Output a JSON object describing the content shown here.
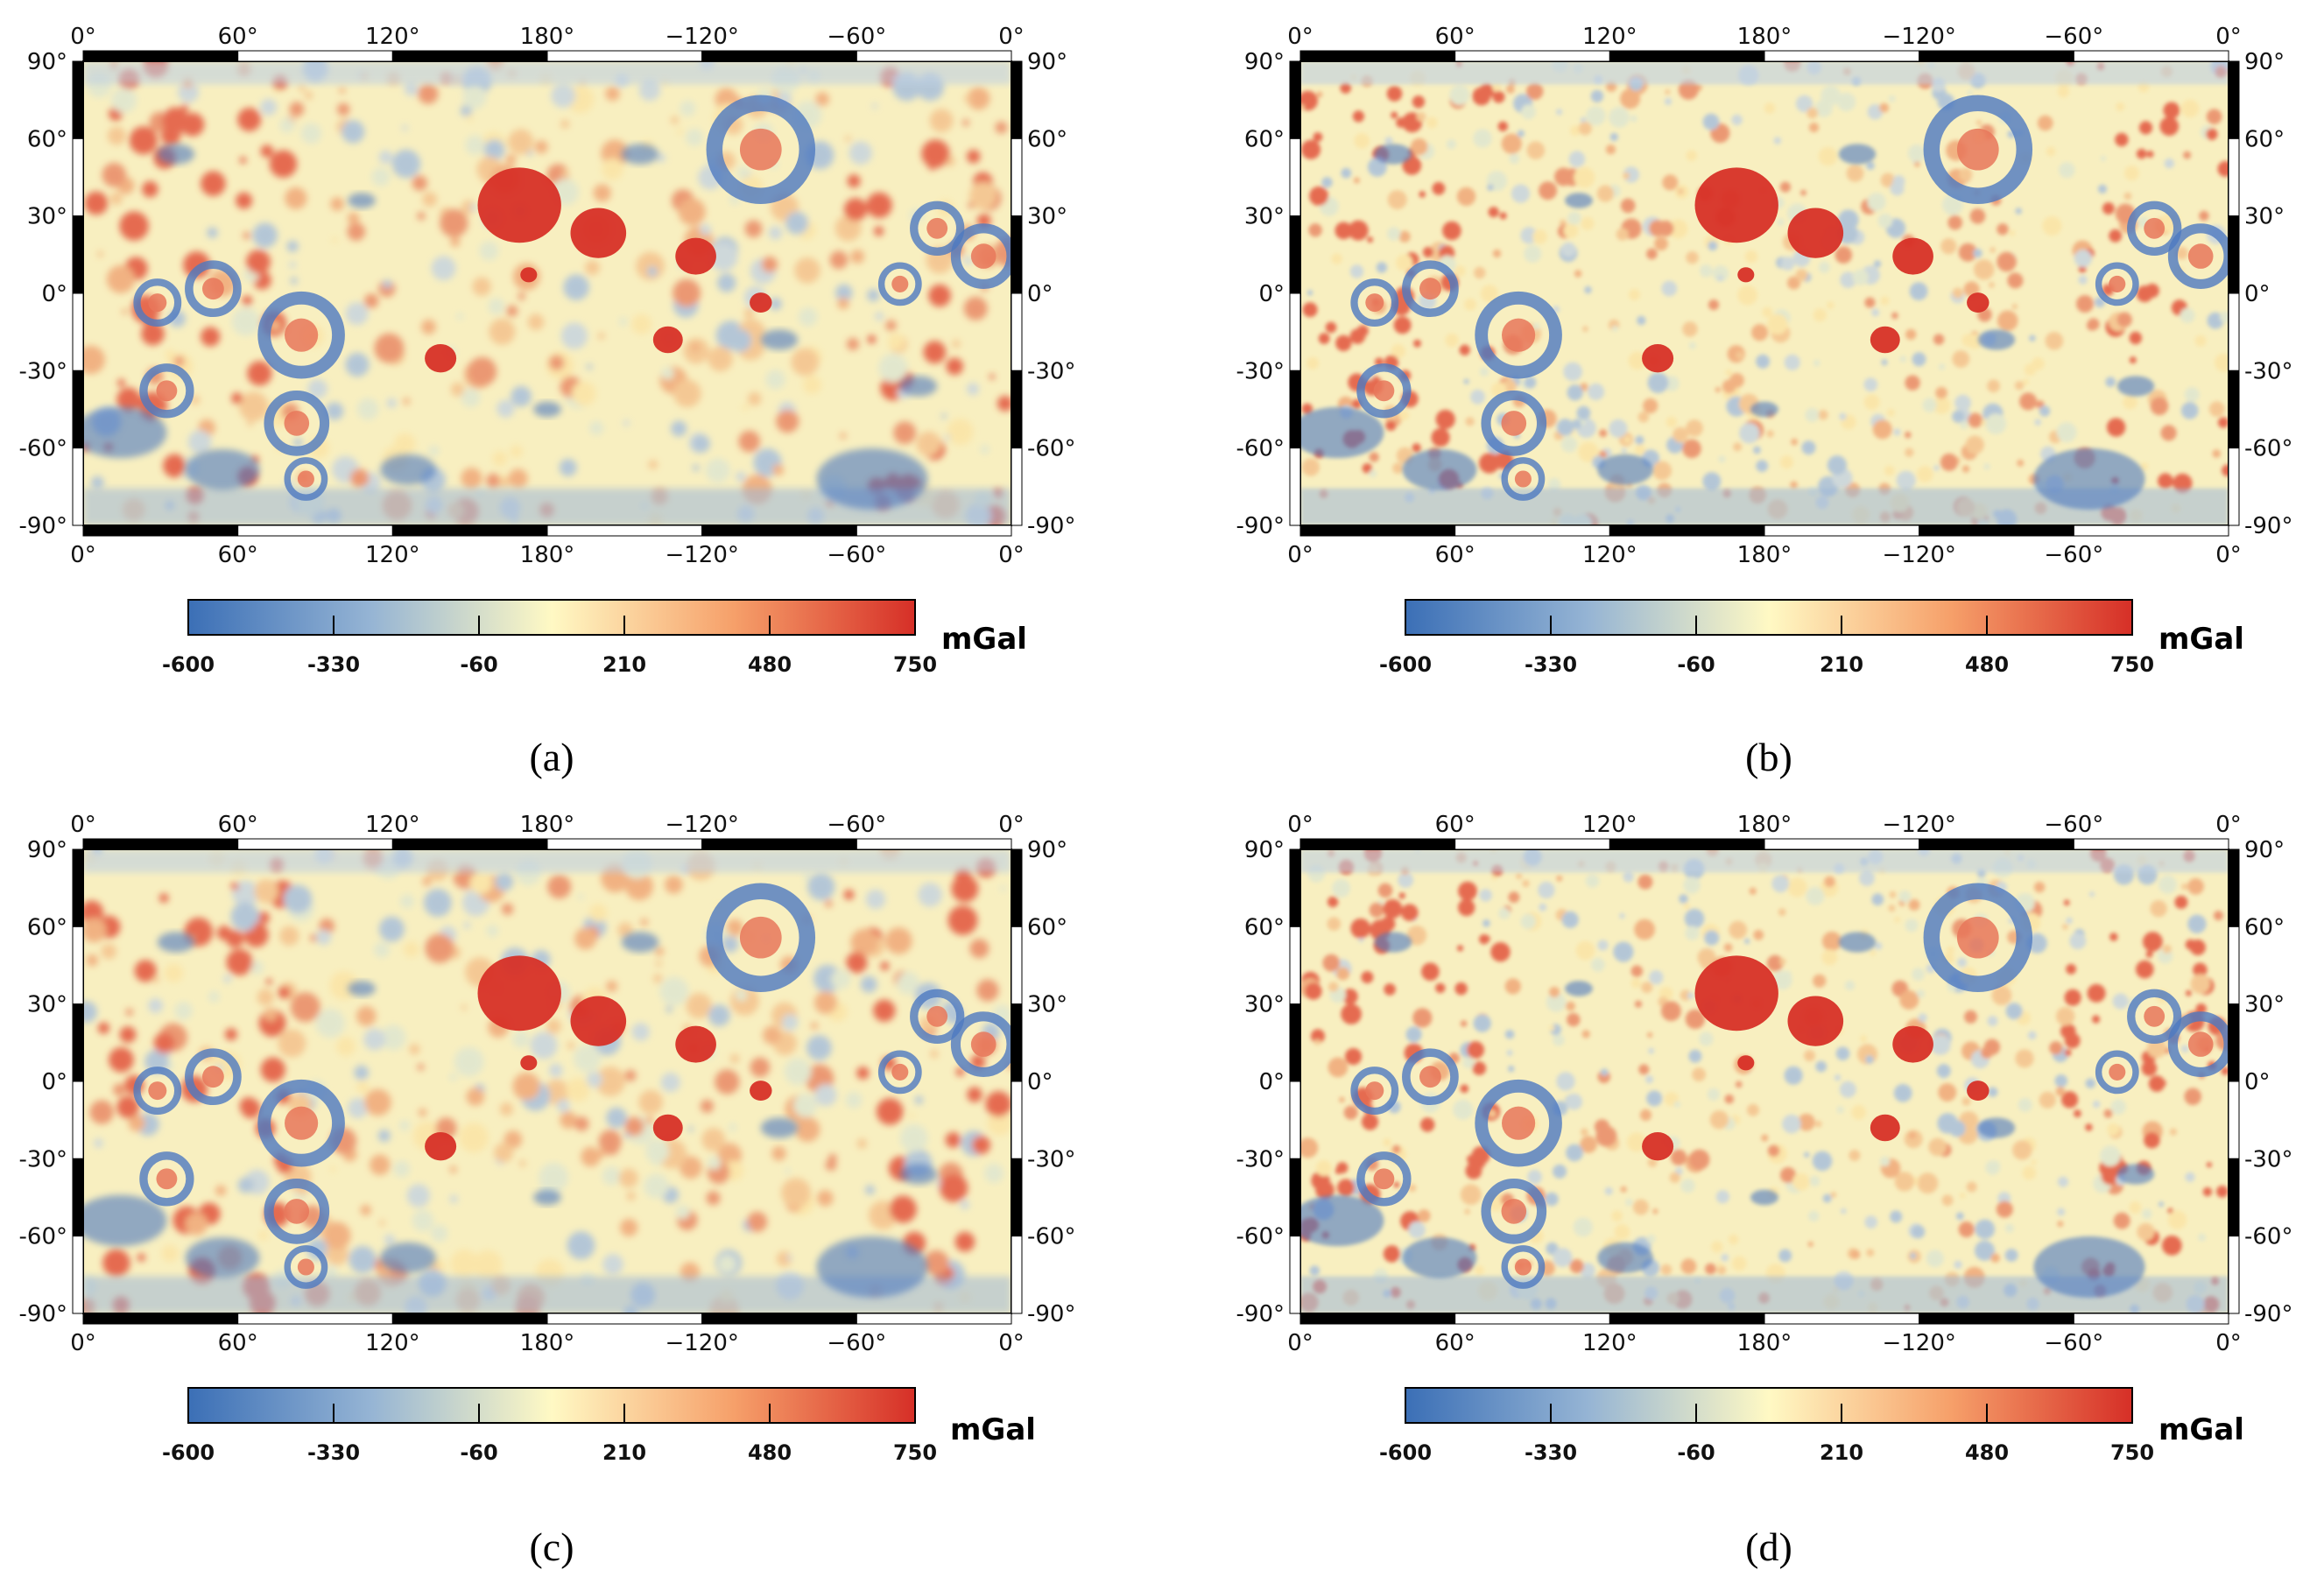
{
  "panels": [
    {
      "id": "a",
      "caption": "(a)"
    },
    {
      "id": "b",
      "caption": "(b)"
    },
    {
      "id": "c",
      "caption": "(c)"
    },
    {
      "id": "d",
      "caption": "(d)"
    }
  ],
  "axes": {
    "lon_ticks": [
      "0°",
      "60°",
      "120°",
      "180°",
      "−120°",
      "−60°",
      "0°"
    ],
    "lat_ticks": [
      "90°",
      "60°",
      "30°",
      "0°",
      "-30°",
      "-60°",
      "-90°"
    ]
  },
  "colorbar": {
    "unit": "mGal",
    "ticks": [
      "-600",
      "-330",
      "-60",
      "210",
      "480",
      "750"
    ],
    "range": [
      -600,
      750
    ],
    "colors": [
      "#3b6fb6",
      "#95b4d4",
      "#fff9c4",
      "#f6a06a",
      "#d62f27"
    ]
  },
  "map_legend": {
    "features": [
      {
        "name": "large-positive-anomaly",
        "color": "#d73027"
      },
      {
        "name": "ring-basin-negative",
        "color": "#4d79c0"
      }
    ]
  }
}
